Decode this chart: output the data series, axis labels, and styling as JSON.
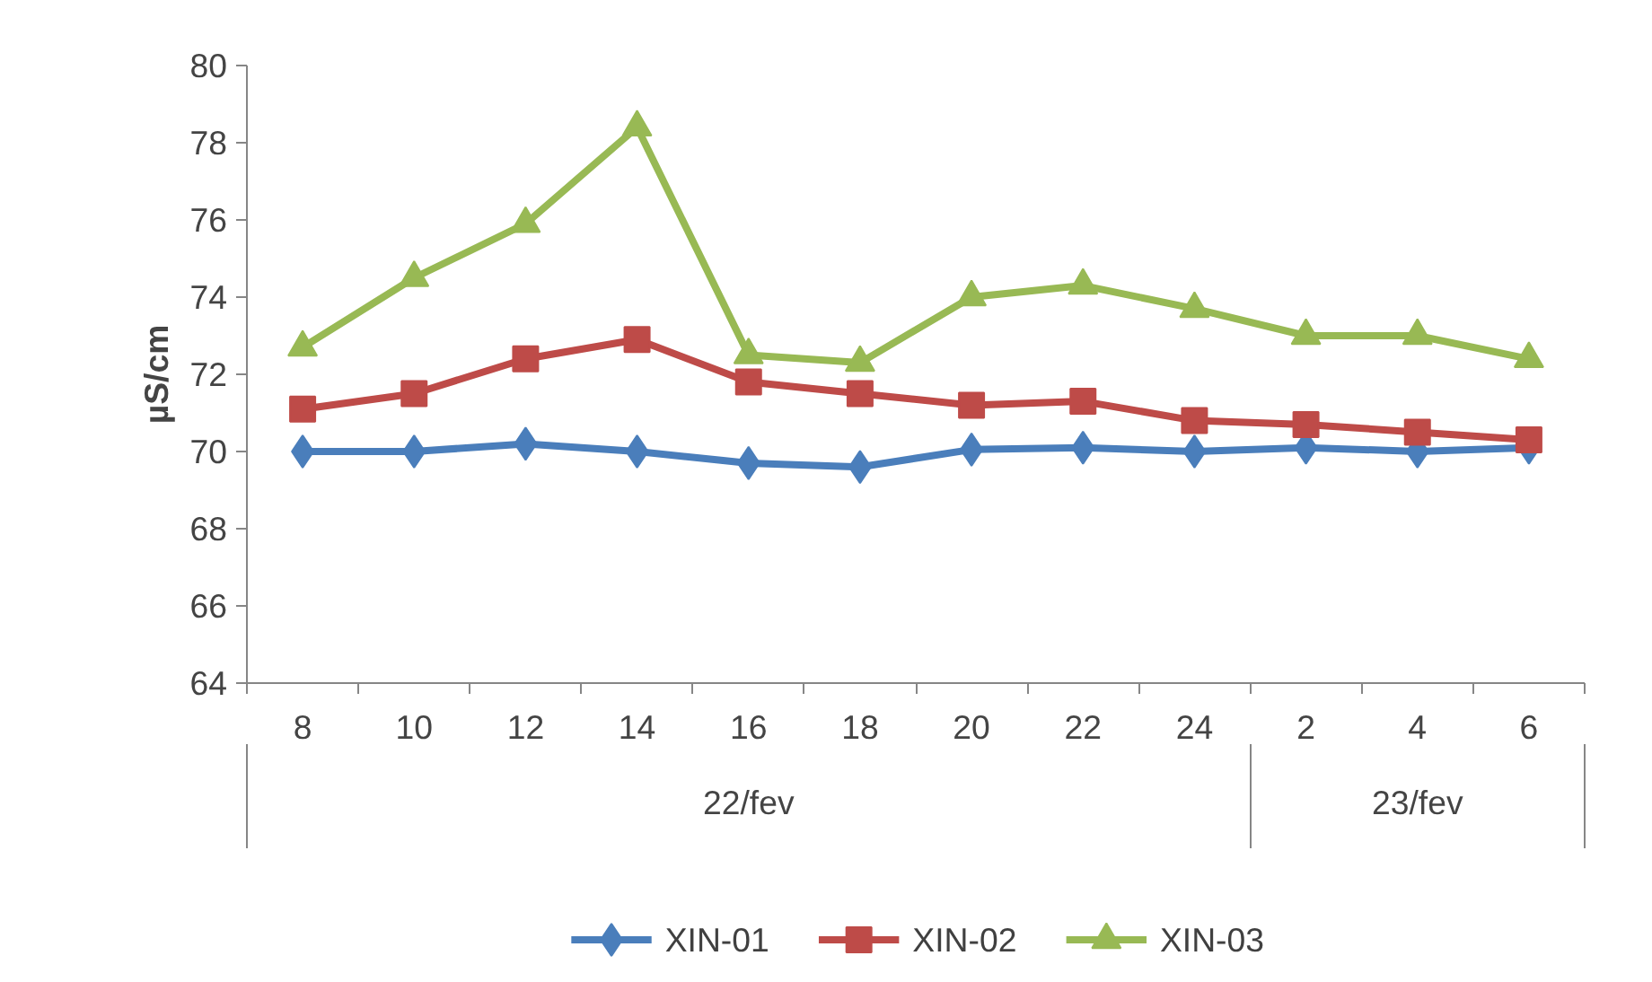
{
  "chart_data": {
    "type": "line",
    "ylabel": "µS/cm",
    "categories": [
      "8",
      "10",
      "12",
      "14",
      "16",
      "18",
      "20",
      "22",
      "24",
      "2",
      "4",
      "6"
    ],
    "ylim": [
      64,
      80
    ],
    "yticks": [
      64,
      66,
      68,
      70,
      72,
      74,
      76,
      78,
      80
    ],
    "grid": false,
    "legend": "bottom",
    "line_style": "solid",
    "annotations": [
      "22/fev",
      "23/fev"
    ],
    "series": [
      {
        "name": "XIN-01",
        "color": "#4a7ebb",
        "marker": "diamond",
        "values": [
          70.0,
          70.0,
          70.2,
          70.0,
          69.7,
          69.6,
          70.05,
          70.1,
          70.0,
          70.1,
          70.0,
          70.1
        ]
      },
      {
        "name": "XIN-02",
        "color": "#be4b48",
        "marker": "square",
        "values": [
          71.1,
          71.5,
          72.4,
          72.9,
          71.8,
          71.5,
          71.2,
          71.3,
          70.8,
          70.7,
          70.5,
          70.3
        ]
      },
      {
        "name": "XIN-03",
        "color": "#98b954",
        "marker": "triangle",
        "values": [
          72.7,
          74.5,
          75.9,
          78.4,
          72.5,
          72.3,
          74.0,
          74.3,
          73.7,
          73.0,
          73.0,
          72.4
        ]
      }
    ]
  }
}
